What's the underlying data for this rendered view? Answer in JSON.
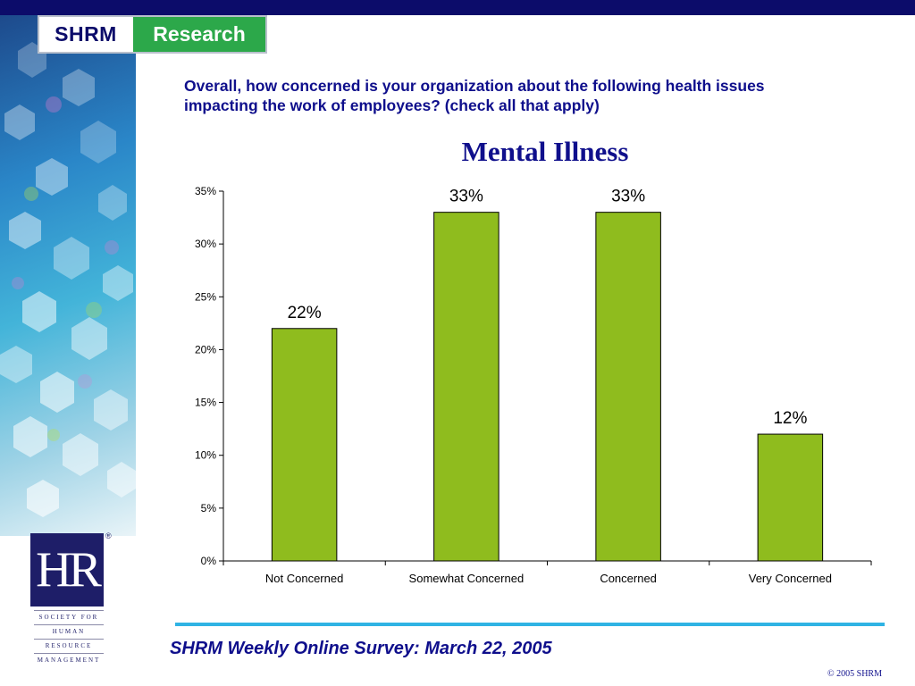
{
  "header": {
    "logo_left": "SHRM",
    "logo_right": "Research"
  },
  "question": "Overall, how concerned is your organization about the following health issues impacting the work of employees? (check all that apply)",
  "chart_data": {
    "type": "bar",
    "title": "Mental Illness",
    "categories": [
      "Not Concerned",
      "Somewhat Concerned",
      "Concerned",
      "Very Concerned"
    ],
    "values": [
      22,
      33,
      33,
      12
    ],
    "data_labels": [
      "22%",
      "33%",
      "33%",
      "12%"
    ],
    "y_ticks": [
      "0%",
      "5%",
      "10%",
      "15%",
      "20%",
      "25%",
      "30%",
      "35%"
    ],
    "ylim": [
      0,
      35
    ],
    "xlabel": "",
    "ylabel": "",
    "grid": false,
    "bar_color": "#8fbc1e"
  },
  "hr_logo": {
    "mark": "HR",
    "registered": "®",
    "lines": [
      "SOCIETY FOR",
      "HUMAN",
      "RESOURCE",
      "MANAGEMENT"
    ]
  },
  "footer": {
    "survey": "SHRM Weekly Online Survey: March 22, 2005",
    "copyright": "© 2005 SHRM"
  },
  "colors": {
    "navy": "#0c0c6a",
    "title_blue": "#0f0f8c",
    "green": "#2ca84a",
    "accent_cyan": "#2fb3e4"
  }
}
